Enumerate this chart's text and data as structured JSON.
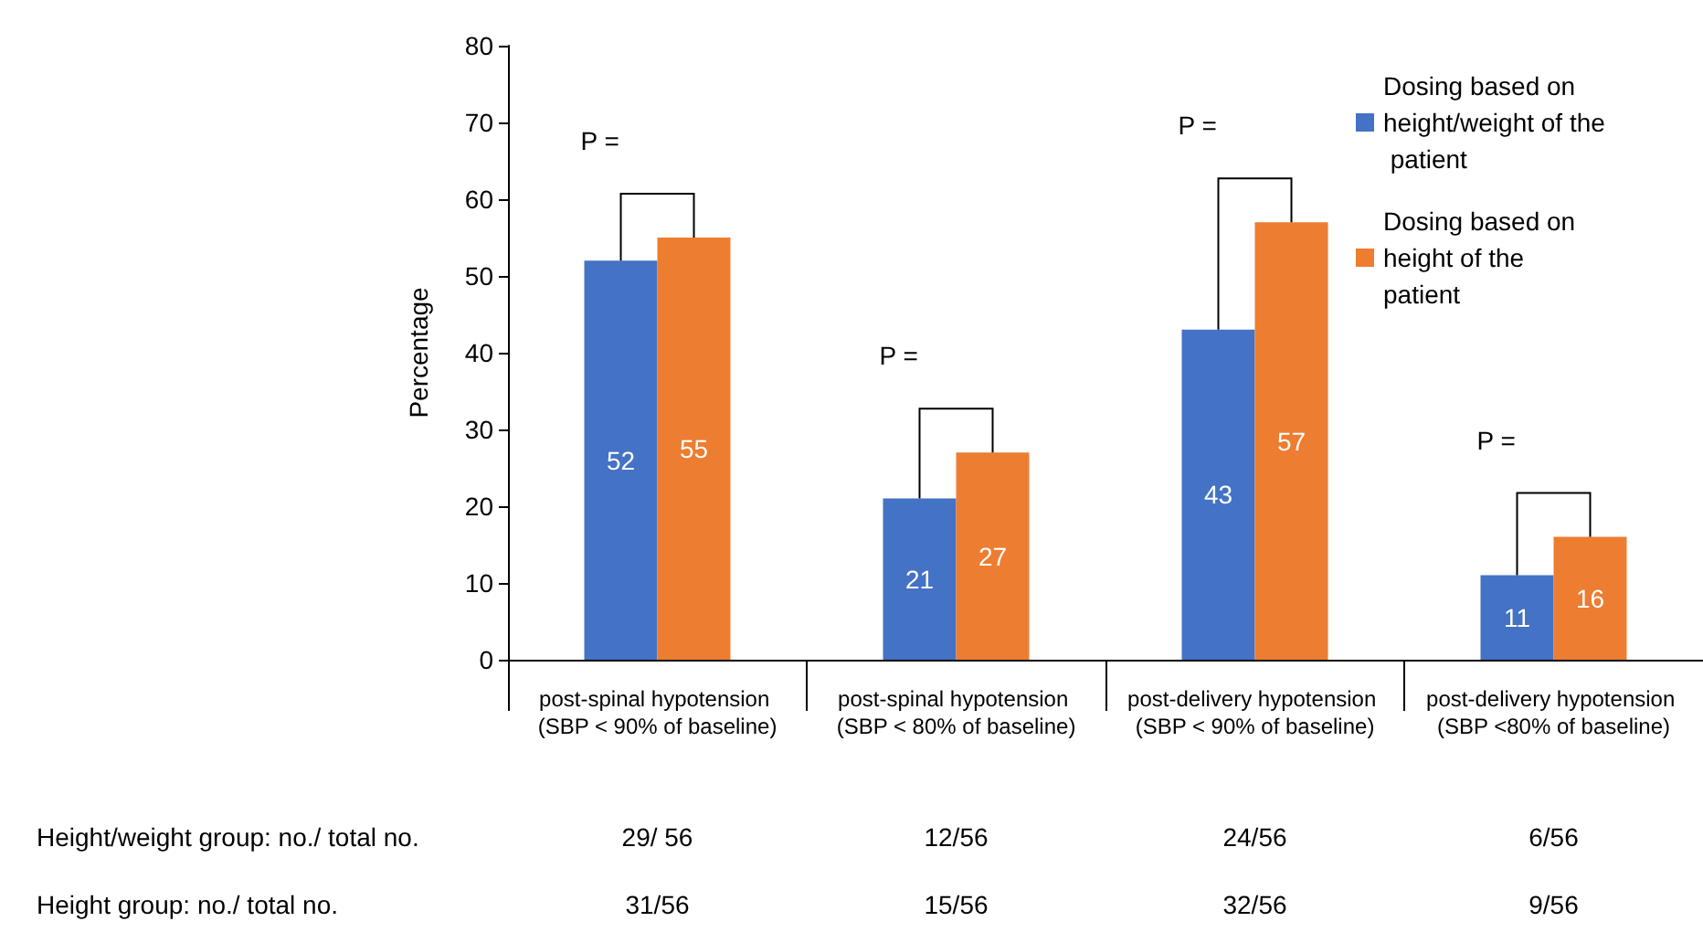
{
  "chart_data": {
    "type": "bar",
    "ylabel": "Percentage",
    "categories": [
      "post-spinal hypotension (SBP < 90% of baseline)",
      "post-spinal hypotension (SBP < 80% of baseline)",
      "post-delivery hypotension (SBP < 90% of baseline)",
      "post-delivery hypotension (SBP <80% of baseline)"
    ],
    "series": [
      {
        "name": "Dosing based on height/weight of the patient",
        "color": "#4472c4",
        "values": [
          52,
          21,
          43,
          11
        ]
      },
      {
        "name": "Dosing based on height of the patient",
        "color": "#ed7d31",
        "values": [
          55,
          27,
          57,
          16
        ]
      }
    ],
    "ylim": [
      0,
      80
    ],
    "yticks": [
      0,
      10,
      20,
      30,
      40,
      50,
      60,
      70,
      80
    ],
    "grid": false,
    "legend": "top right",
    "data_labels": true,
    "annotations": [
      "P =",
      "P =",
      "P =",
      "P =",
      "Height/weight group: no./ total no.",
      "29/ 56",
      "12/56",
      "24/56",
      "6/56",
      "Height group: no./ total no.",
      "31/56",
      "15/56",
      "32/56",
      "9/56"
    ]
  }
}
